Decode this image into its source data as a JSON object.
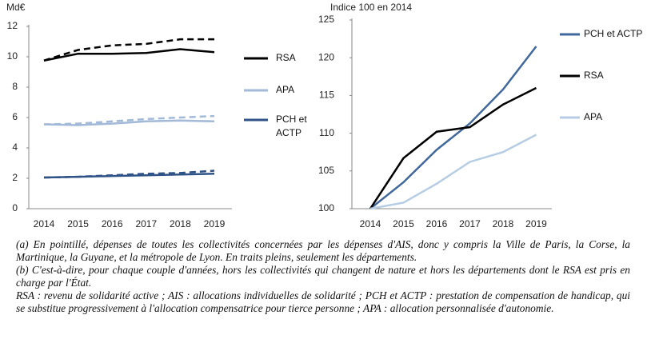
{
  "chart_data": [
    {
      "type": "line",
      "y_label": "Md€",
      "categories": [
        "2014",
        "2015",
        "2016",
        "2017",
        "2018",
        "2019"
      ],
      "ylim": [
        0,
        12
      ],
      "yticks": [
        0,
        2,
        4,
        6,
        8,
        10,
        12
      ],
      "legend": "right",
      "series": [
        {
          "name": "RSA",
          "color": "#000000",
          "values": [
            9.75,
            10.2,
            10.2,
            10.25,
            10.5,
            10.3
          ]
        },
        {
          "color": "#000000",
          "dashed": true,
          "values": [
            9.75,
            10.45,
            10.75,
            10.85,
            11.15,
            11.15
          ]
        },
        {
          "name": "APA",
          "color": "#a3b9d8",
          "values": [
            5.55,
            5.5,
            5.6,
            5.75,
            5.8,
            5.75
          ]
        },
        {
          "color": "#a3b9d8",
          "dashed": true,
          "values": [
            5.55,
            5.6,
            5.75,
            5.9,
            6.0,
            6.1
          ]
        },
        {
          "name": "PCH et ACTP",
          "color": "#2f5387",
          "values": [
            2.05,
            2.1,
            2.15,
            2.2,
            2.25,
            2.3
          ]
        },
        {
          "color": "#2f5387",
          "dashed": true,
          "values": [
            2.05,
            2.1,
            2.2,
            2.3,
            2.35,
            2.5
          ]
        }
      ]
    },
    {
      "type": "line",
      "y_label": "Indice 100 en 2014",
      "categories": [
        "2014",
        "2015",
        "2016",
        "2017",
        "2018",
        "2019"
      ],
      "ylim": [
        100,
        125
      ],
      "yticks": [
        100,
        105,
        110,
        115,
        120,
        125
      ],
      "legend": "right",
      "series": [
        {
          "name": "PCH et ACTP",
          "color": "#41689b",
          "values": [
            100,
            103.5,
            107.8,
            111.3,
            115.8,
            121.5
          ]
        },
        {
          "name": "RSA",
          "color": "#000000",
          "values": [
            100,
            106.7,
            110.2,
            110.8,
            113.8,
            116
          ]
        },
        {
          "name": "APA",
          "color": "#b7cde3",
          "values": [
            100,
            100.8,
            103.3,
            106.2,
            107.5,
            109.8
          ]
        }
      ]
    }
  ],
  "notes": [
    "(a) En pointillé, dépenses de toutes les collectivités concernées par les dépenses d'AIS, donc y compris la Ville de Paris, la Corse, la Martinique, la Guyane, et la métropole de Lyon. En traits pleins, seulement les départements.",
    "(b) C'est-à-dire, pour chaque couple d'années, hors les collectivités qui changent de nature et hors les départements dont le RSA est pris en charge par l'État.",
    "RSA : revenu de solidarité active ; AIS : allocations individuelles de solidarité ; PCH et ACTP : prestation de compensation de handicap, qui se substitue progressivement à l'allocation compensatrice pour tierce personne ; APA : allocation personnalisée d'autonomie."
  ]
}
